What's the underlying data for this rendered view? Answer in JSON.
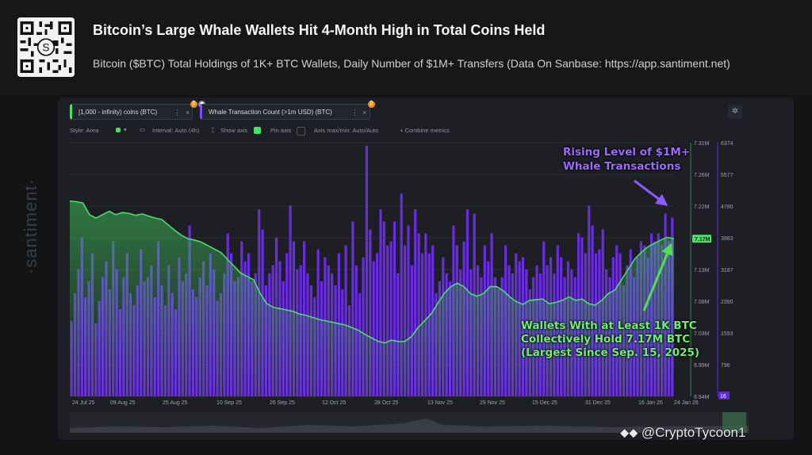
{
  "header": {
    "title": "Bitcoin’s Large Whale Wallets Hit 4-Month High in Total Coins Held",
    "subtitle": "Bitcoin ($BTC) Total Holdings of 1K+ BTC Wallets, Daily Number of $1M+ Transfers (Data On Sanbase: https://app.santiment.net)"
  },
  "legend": {
    "metric1": "[1,000 - infinity) coins (BTC)",
    "metric2": "Whale Transaction Count (>1m USD) (BTC)",
    "dots": "⋮",
    "close": "×"
  },
  "toolbar": {
    "style": "Style: Area",
    "interval": "Interval: Auto (4h)",
    "show_axis": "Show axis",
    "pin_axis": "Pin axis",
    "axis_maxmin": "Axis max/min: Auto/Auto",
    "combine": "+  Combine metrics"
  },
  "watermark": "·santiment·",
  "annotations": {
    "purple_line1": "Rising Level of $1M+",
    "purple_line2": "Whale Transactions",
    "green_line1": "Wallets With at Least 1K BTC",
    "green_line2": "Collectively Hold 7.17M BTC",
    "green_line3": "(Largest Since Sep. 15, 2025)"
  },
  "footer_brand": "@CryptoTycoon1",
  "colors": {
    "green": "#4cde6a",
    "purple": "#6a2ce0",
    "purple_bright": "#8a4dff"
  },
  "chart_data": {
    "type": "bar",
    "x_labels": [
      "24 Jul 25",
      "09 Aug 25",
      "25 Aug 25",
      "10 Sep 25",
      "26 Sep 25",
      "12 Oct 25",
      "28 Oct 25",
      "13 Nov 25",
      "29 Nov 25",
      "15 Dec 25",
      "31 Dec 25",
      "16 Jan 26",
      "24 Jan 26"
    ],
    "y_left": {
      "label": "[1,000 - infinity) coins (BTC)",
      "ticks": [
        "7.31M",
        "7.26M",
        "7.22M",
        "7.17M",
        "7.13M",
        "7.08M",
        "7.03M",
        "6.99M",
        "6.94M"
      ],
      "min": 6.94,
      "max": 7.31,
      "current": "7.17M"
    },
    "y_right": {
      "label": "Whale Transaction Count (>1m USD) (BTC)",
      "ticks": [
        "6374",
        "5577",
        "4780",
        "3983",
        "3187",
        "2390",
        "1593",
        "796",
        "16"
      ],
      "min": 16,
      "max": 6374,
      "current": "16"
    },
    "series": [
      {
        "name": "Whale Transaction Count (>1m USD)",
        "type": "bar",
        "values": [
          1900,
          2600,
          3200,
          4000,
          2500,
          2900,
          3600,
          1850,
          2400,
          3000,
          3400,
          2700,
          3900,
          3200,
          2200,
          3000,
          3600,
          2600,
          2300,
          2800,
          3700,
          2900,
          3000,
          3300,
          2500,
          3900,
          2800,
          2300,
          3300,
          2600,
          2200,
          3500,
          2900,
          3100,
          4300,
          2700,
          2500,
          3000,
          3400,
          2800,
          3600,
          3200,
          2400,
          2600,
          3100,
          4100,
          3600,
          2900,
          3000,
          3900,
          3400,
          3600,
          2900,
          3100,
          4700,
          4200,
          2800,
          3100,
          3300,
          4000,
          3400,
          2900,
          3600,
          4800,
          3900,
          3200,
          3300,
          3900,
          3100,
          2800,
          2500,
          3700,
          2900,
          3500,
          3300,
          3100,
          2800,
          3600,
          2700,
          3800,
          2300,
          4400,
          3300,
          2600,
          3500,
          6300,
          4200,
          3400,
          3600,
          4700,
          4400,
          3800,
          3900,
          4400,
          3100,
          5100,
          3800,
          4300,
          3300,
          4700,
          4100,
          3600,
          4100,
          3600,
          3800,
          2600,
          2900,
          3500,
          3100,
          2900,
          4300,
          3800,
          3200,
          3900,
          4700,
          3200,
          4600,
          3300,
          3000,
          3800,
          3400,
          4100,
          3000,
          2700,
          3000,
          3800,
          3300,
          3100,
          3600,
          3400,
          3500,
          3200,
          2700,
          3000,
          3300,
          3100,
          3900,
          3300,
          3500,
          3100,
          3800,
          3500,
          3000,
          3400,
          3200,
          3000,
          4100,
          4000,
          3600,
          4800,
          4300,
          3600,
          3700,
          4200,
          3200,
          3000,
          3500,
          3800,
          3600,
          2800,
          3300,
          3700,
          3000,
          3500,
          3900,
          3800,
          3500,
          4100,
          3900,
          4100,
          3800,
          4600,
          3900,
          4500
        ]
      },
      {
        "name": "[1,000 - infinity) coins (BTC)",
        "type": "area",
        "values": [
          7.225,
          7.224,
          7.222,
          7.205,
          7.2,
          7.205,
          7.21,
          7.205,
          7.208,
          7.207,
          7.204,
          7.206,
          7.203,
          7.2,
          7.198,
          7.19,
          7.182,
          7.175,
          7.17,
          7.168,
          7.165,
          7.16,
          7.155,
          7.15,
          7.14,
          7.13,
          7.12,
          7.115,
          7.11,
          7.09,
          7.075,
          7.07,
          7.068,
          7.066,
          7.064,
          7.06,
          7.058,
          7.055,
          7.052,
          7.05,
          7.048,
          7.046,
          7.044,
          7.04,
          7.036,
          7.03,
          7.025,
          7.02,
          7.018,
          7.022,
          7.02,
          7.02,
          7.027,
          7.04,
          7.05,
          7.06,
          7.075,
          7.09,
          7.1,
          7.105,
          7.1,
          7.09,
          7.086,
          7.09,
          7.1,
          7.1,
          7.094,
          7.085,
          7.078,
          7.074,
          7.08,
          7.081,
          7.082,
          7.075,
          7.077,
          7.08,
          7.085,
          7.08,
          7.082,
          7.075,
          7.073,
          7.08,
          7.09,
          7.095,
          7.11,
          7.125,
          7.14,
          7.15,
          7.158,
          7.163,
          7.168,
          7.172,
          7.17
        ]
      }
    ]
  }
}
